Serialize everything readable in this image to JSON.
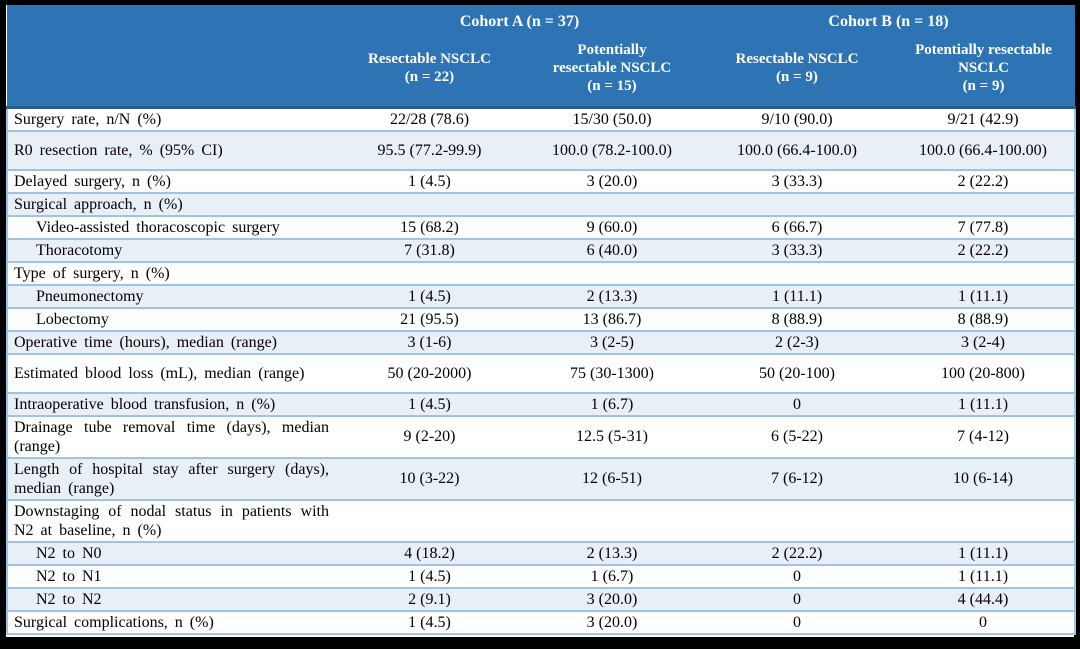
{
  "header": {
    "cohorts": [
      {
        "label": "Cohort A (n = 37)"
      },
      {
        "label": "Cohort B (n = 18)"
      }
    ],
    "columns": [
      "Resectable NSCLC\n(n = 22)",
      "Potentially\nresectable NSCLC\n(n = 15)",
      "Resectable NSCLC\n(n = 9)",
      "Potentially resectable\nNSCLC\n(n = 9)"
    ]
  },
  "table": {
    "rows": [
      {
        "label": "Surgery rate, n/N (%)",
        "indent": false,
        "tall": false,
        "values": [
          "22/28 (78.6)",
          "15/30 (50.0)",
          "9/10 (90.0)",
          "9/21 (42.9)"
        ]
      },
      {
        "label": "R0 resection rate, % (95% CI)",
        "indent": false,
        "tall": true,
        "values": [
          "95.5 (77.2-99.9)",
          "100.0 (78.2-100.0)",
          "100.0 (66.4-100.0)",
          "100.0 (66.4-100.00)"
        ]
      },
      {
        "label": "Delayed surgery, n (%)",
        "indent": false,
        "tall": false,
        "values": [
          "1 (4.5)",
          "3 (20.0)",
          "3 (33.3)",
          "2 (22.2)"
        ]
      },
      {
        "label": "Surgical approach, n (%)",
        "indent": false,
        "tall": false,
        "values": [
          "",
          "",
          "",
          ""
        ]
      },
      {
        "label": "Video-assisted thoracoscopic surgery",
        "indent": true,
        "tall": false,
        "values": [
          "15 (68.2)",
          "9 (60.0)",
          "6 (66.7)",
          "7 (77.8)"
        ]
      },
      {
        "label": "Thoracotomy",
        "indent": true,
        "tall": false,
        "values": [
          "7 (31.8)",
          "6 (40.0)",
          "3 (33.3)",
          "2 (22.2)"
        ]
      },
      {
        "label": "Type of surgery, n (%)",
        "indent": false,
        "tall": false,
        "values": [
          "",
          "",
          "",
          ""
        ]
      },
      {
        "label": "Pneumonectomy",
        "indent": true,
        "tall": false,
        "values": [
          "1 (4.5)",
          "2 (13.3)",
          "1 (11.1)",
          "1 (11.1)"
        ]
      },
      {
        "label": "Lobectomy",
        "indent": true,
        "tall": false,
        "values": [
          "21 (95.5)",
          "13 (86.7)",
          "8 (88.9)",
          "8 (88.9)"
        ]
      },
      {
        "label": "Operative time (hours), median (range)",
        "indent": false,
        "tall": false,
        "values": [
          "3 (1-6)",
          "3 (2-5)",
          "2 (2-3)",
          "3 (2-4)"
        ]
      },
      {
        "label": "Estimated blood loss (mL), median (range)",
        "indent": false,
        "tall": true,
        "values": [
          "50 (20-2000)",
          "75 (30-1300)",
          "50 (20-100)",
          "100 (20-800)"
        ]
      },
      {
        "label": "Intraoperative blood transfusion, n (%)",
        "indent": false,
        "tall": false,
        "values": [
          "1 (4.5)",
          "1 (6.7)",
          "0",
          "1 (11.1)"
        ]
      },
      {
        "label": "Drainage tube removal time (days), median (range)",
        "indent": false,
        "tall": true,
        "values": [
          "9 (2-20)",
          "12.5 (5-31)",
          "6 (5-22)",
          "7 (4-12)"
        ]
      },
      {
        "label": "Length of hospital stay after surgery (days), median (range)",
        "indent": false,
        "tall": true,
        "values": [
          "10 (3-22)",
          "12 (6-51)",
          "7 (6-12)",
          "10 (6-14)"
        ]
      },
      {
        "label": "Downstaging of nodal status in patients with N2 at baseline, n (%)",
        "indent": false,
        "tall": true,
        "values": [
          "",
          "",
          "",
          ""
        ]
      },
      {
        "label": "N2 to N0",
        "indent": true,
        "tall": false,
        "values": [
          "4 (18.2)",
          "2 (13.3)",
          "2 (22.2)",
          "1 (11.1)"
        ]
      },
      {
        "label": "N2 to N1",
        "indent": true,
        "tall": false,
        "values": [
          "1 (4.5)",
          "1 (6.7)",
          "0",
          "1 (11.1)"
        ]
      },
      {
        "label": "N2 to N2",
        "indent": true,
        "tall": false,
        "values": [
          "2 (9.1)",
          "3 (20.0)",
          "0",
          "4 (44.4)"
        ]
      },
      {
        "label": "Surgical complications, n (%)",
        "indent": false,
        "tall": false,
        "values": [
          "1 (4.5)",
          "3 (20.0)",
          "0",
          "0"
        ]
      }
    ]
  },
  "colors": {
    "header_bg": "#2E74B5",
    "header_divider": "#255C8F",
    "stripe_bg": "#E9EFF7",
    "row_border": "#9DC3E6",
    "frame": "#000000",
    "header_text": "#FFFFFF",
    "body_text": "#000000"
  }
}
